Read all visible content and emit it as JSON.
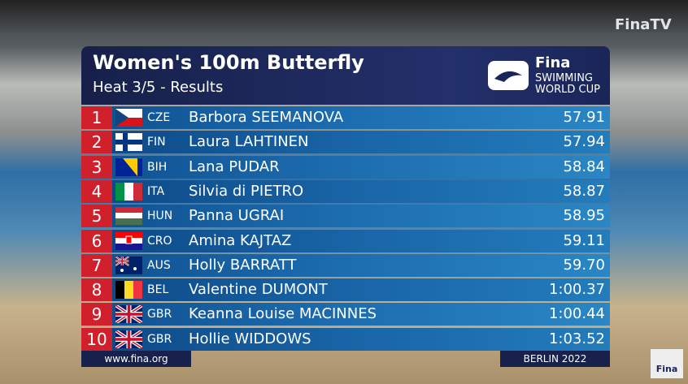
{
  "header": {
    "title": "Women's 100m Butterfly",
    "subtitle": "Heat 3/5 - Results"
  },
  "logo": {
    "brand": "Fina",
    "line1": "SWIMMING",
    "line2": "WORLD CUP"
  },
  "watermark": "FinaTV",
  "results": [
    {
      "rank": 1,
      "country": "CZE",
      "name": "Barbora SEEMANOVA",
      "time": "57.91"
    },
    {
      "rank": 2,
      "country": "FIN",
      "name": "Laura LAHTINEN",
      "time": "57.94"
    },
    {
      "rank": 3,
      "country": "BIH",
      "name": "Lana PUDAR",
      "time": "58.84"
    },
    {
      "rank": 4,
      "country": "ITA",
      "name": "Silvia di PIETRO",
      "time": "58.87"
    },
    {
      "rank": 5,
      "country": "HUN",
      "name": "Panna UGRAI",
      "time": "58.95"
    },
    {
      "rank": 6,
      "country": "CRO",
      "name": "Amina KAJTAZ",
      "time": "59.11"
    },
    {
      "rank": 7,
      "country": "AUS",
      "name": "Holly BARRATT",
      "time": "59.70"
    },
    {
      "rank": 8,
      "country": "BEL",
      "name": "Valentine DUMONT",
      "time": "1:00.37"
    },
    {
      "rank": 9,
      "country": "GBR",
      "name": "Keanna Louise MACINNES",
      "time": "1:00.44"
    },
    {
      "rank": 10,
      "country": "GBR",
      "name": "Hollie WIDDOWS",
      "time": "1:03.52"
    }
  ],
  "footer": {
    "website": "www.fina.org",
    "location": "BERLIN 2022"
  },
  "corner_logo": "Fina"
}
